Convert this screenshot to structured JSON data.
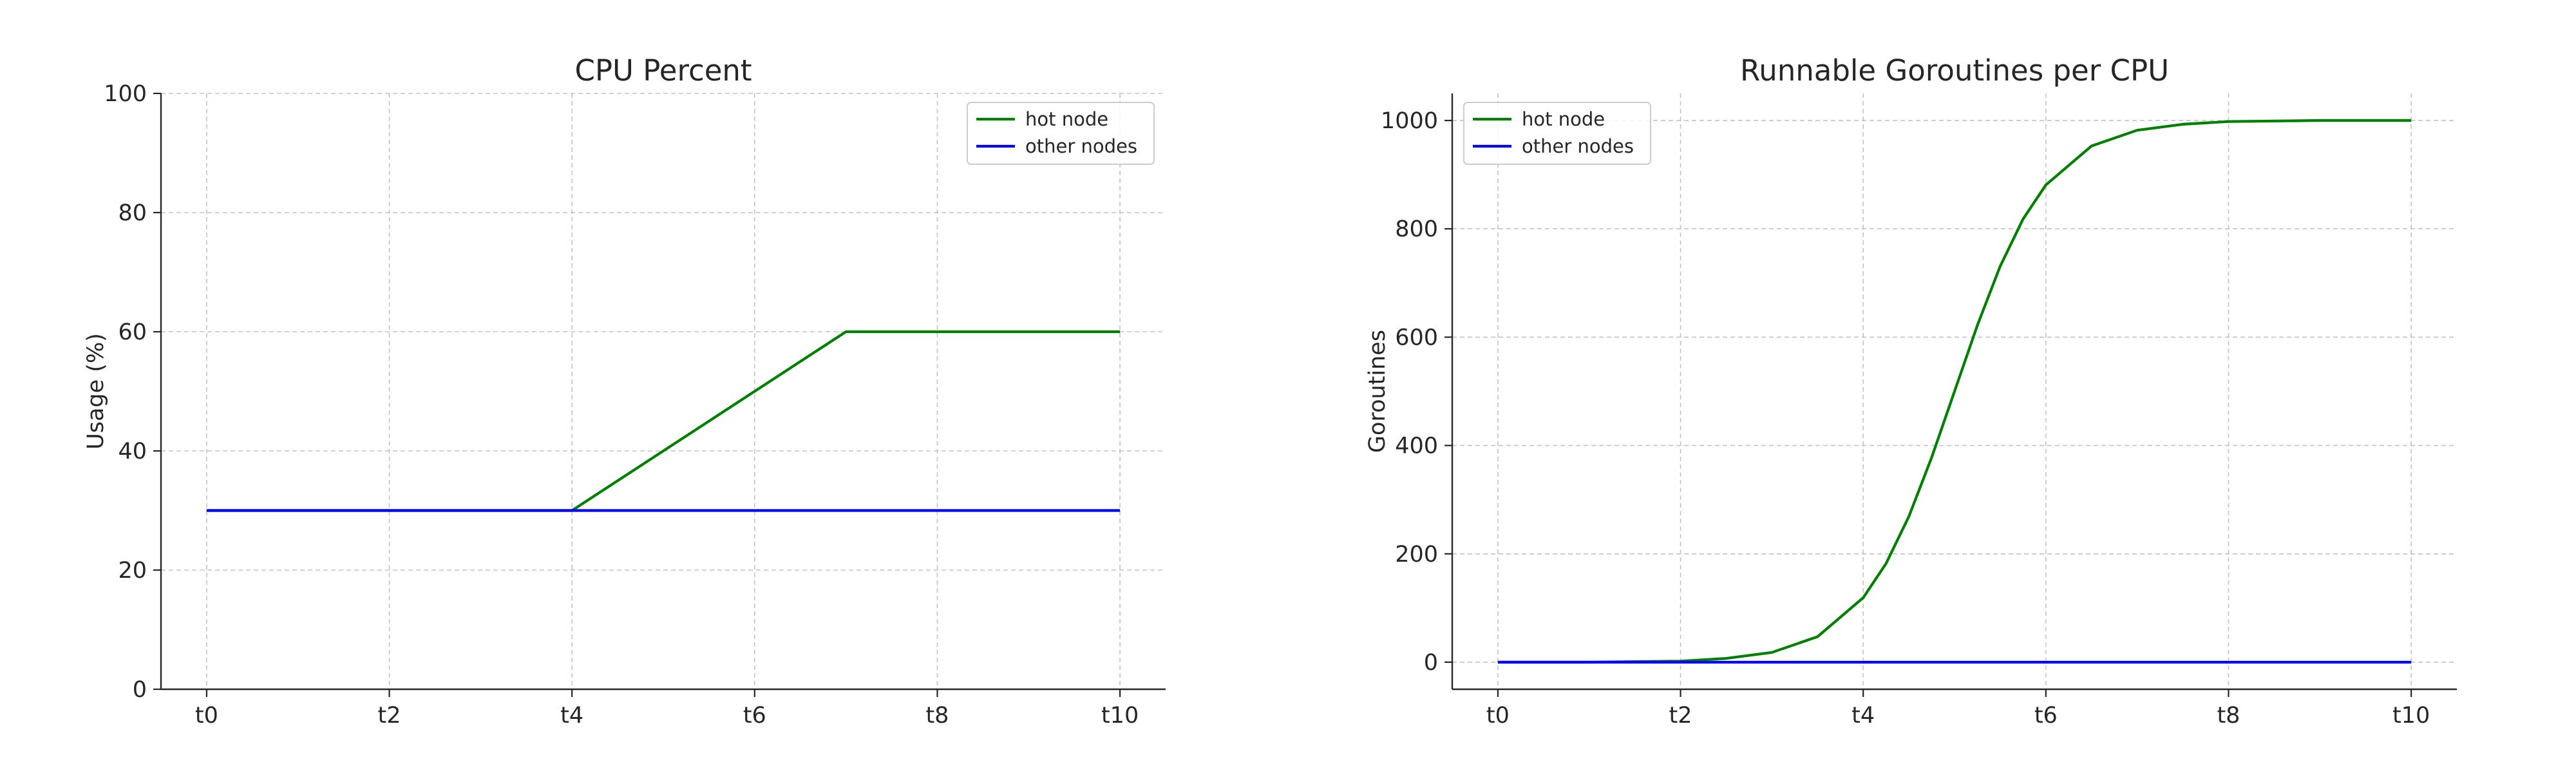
{
  "chart_data": [
    {
      "type": "line",
      "title": "CPU Percent",
      "xlabel": "",
      "ylabel": "Usage (%)",
      "x": [
        0,
        1,
        2,
        3,
        4,
        5,
        6,
        7,
        8,
        9,
        10
      ],
      "xticks": [
        {
          "x": 0,
          "label": "t0"
        },
        {
          "x": 2,
          "label": "t2"
        },
        {
          "x": 4,
          "label": "t4"
        },
        {
          "x": 6,
          "label": "t6"
        },
        {
          "x": 8,
          "label": "t8"
        },
        {
          "x": 10,
          "label": "t10"
        }
      ],
      "xlim": [
        -0.5,
        10.5
      ],
      "ylim": [
        0,
        100
      ],
      "yticks": [
        0,
        20,
        40,
        60,
        80,
        100
      ],
      "grid": true,
      "legend_position": "top-right",
      "series": [
        {
          "name": "hot node",
          "color": "#008000",
          "values": [
            30,
            30,
            30,
            30,
            30,
            40,
            50,
            60,
            60,
            60,
            60
          ]
        },
        {
          "name": "other nodes",
          "color": "#0000ff",
          "values": [
            30,
            30,
            30,
            30,
            30,
            30,
            30,
            30,
            30,
            30,
            30
          ]
        }
      ]
    },
    {
      "type": "line",
      "title": "Runnable Goroutines per CPU",
      "xlabel": "",
      "ylabel": "Goroutines",
      "x": [
        0,
        0.5,
        1,
        1.5,
        2,
        2.5,
        3,
        3.5,
        4,
        4.25,
        4.5,
        4.75,
        5,
        5.25,
        5.5,
        5.75,
        6,
        6.5,
        7,
        7.5,
        8,
        8.5,
        9,
        9.5,
        10
      ],
      "xticks": [
        {
          "x": 0,
          "label": "t0"
        },
        {
          "x": 2,
          "label": "t2"
        },
        {
          "x": 4,
          "label": "t4"
        },
        {
          "x": 6,
          "label": "t6"
        },
        {
          "x": 8,
          "label": "t8"
        },
        {
          "x": 10,
          "label": "t10"
        }
      ],
      "xlim": [
        -0.5,
        10.5
      ],
      "ylim": [
        -50,
        1050
      ],
      "yticks": [
        0,
        200,
        400,
        600,
        800,
        1000
      ],
      "grid": true,
      "legend_position": "top-left",
      "series": [
        {
          "name": "hot node",
          "color": "#008000",
          "values": [
            0,
            0,
            0,
            1,
            2,
            7,
            18,
            47,
            119,
            182,
            269,
            378,
            500,
            622,
            731,
            818,
            881,
            953,
            982,
            993,
            998,
            999,
            1000,
            1000,
            1000
          ]
        },
        {
          "name": "other nodes",
          "color": "#0000ff",
          "values": [
            0,
            0,
            0,
            0,
            0,
            0,
            0,
            0,
            0,
            0,
            0,
            0,
            0,
            0,
            0,
            0,
            0,
            0,
            0,
            0,
            0,
            0,
            0,
            0,
            0
          ]
        }
      ]
    }
  ]
}
